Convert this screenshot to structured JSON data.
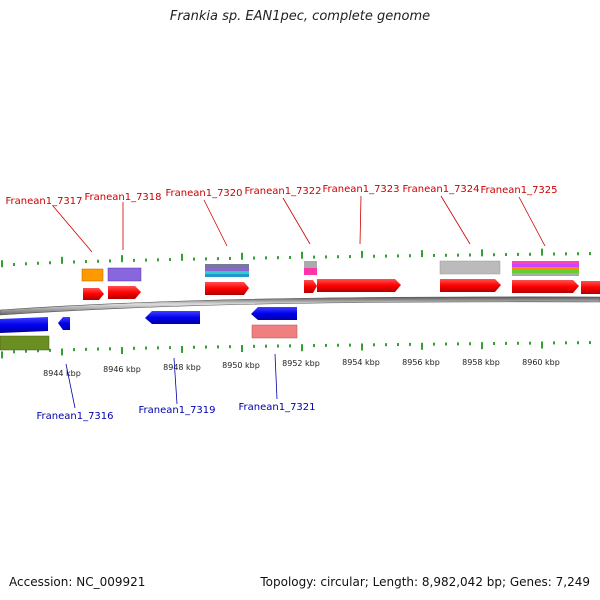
{
  "title": "Frankia sp. EAN1pec, complete genome",
  "footer": {
    "accession": "Accession: NC_009921",
    "summary": "Topology: circular; Length: 8,982,042 bp; Genes: 7,249"
  },
  "colors": {
    "forward": "#ff0000",
    "reverse": "#0000ee",
    "label_forward": "#cc0000",
    "label_reverse": "#0000aa",
    "tick": "#008800",
    "backbone": "#888888"
  },
  "scale": {
    "unit": "kbp",
    "labels": [
      "8944 kbp",
      "8946 kbp",
      "8948 kbp",
      "8950 kbp",
      "8952 kbp",
      "8954 kbp",
      "8956 kbp",
      "8958 kbp",
      "8960 kbp"
    ]
  },
  "genes_top": [
    {
      "label": "Franean1_7317"
    },
    {
      "label": "Franean1_7318"
    },
    {
      "label": "Franean1_7320"
    },
    {
      "label": "Franean1_7322"
    },
    {
      "label": "Franean1_7323"
    },
    {
      "label": "Franean1_7324"
    },
    {
      "label": "Franean1_7325"
    }
  ],
  "genes_bottom": [
    {
      "label": "Franean1_7316"
    },
    {
      "label": "Franean1_7319"
    },
    {
      "label": "Franean1_7321"
    }
  ]
}
